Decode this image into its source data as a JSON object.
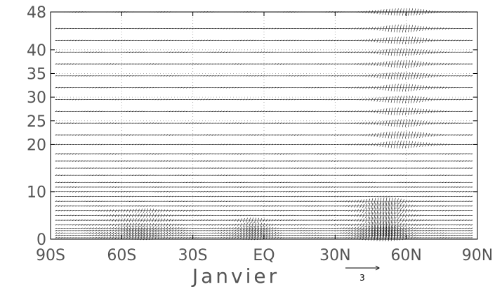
{
  "chart_data": {
    "type": "vector",
    "xlabel": "Janvier",
    "ylabel": "",
    "xlim": [
      -90,
      90
    ],
    "ylim": [
      0,
      48
    ],
    "x_ticks": [
      {
        "value": -90,
        "label": "90S"
      },
      {
        "value": -60,
        "label": "60S"
      },
      {
        "value": -30,
        "label": "30S"
      },
      {
        "value": 0,
        "label": "EQ"
      },
      {
        "value": 30,
        "label": "30N"
      },
      {
        "value": 60,
        "label": "60N"
      },
      {
        "value": 90,
        "label": "90N"
      }
    ],
    "y_ticks": [
      {
        "value": 0,
        "label": "0"
      },
      {
        "value": 10,
        "label": "10"
      },
      {
        "value": 20,
        "label": "20"
      },
      {
        "value": 25,
        "label": "25"
      },
      {
        "value": 30,
        "label": "30"
      },
      {
        "value": 35,
        "label": "35"
      },
      {
        "value": 40,
        "label": "40"
      },
      {
        "value": 48,
        "label": "48"
      }
    ],
    "grid": true,
    "reference_vector": {
      "magnitude": 3,
      "label": "3"
    },
    "levels": [
      0.3,
      0.8,
      1.3,
      1.8,
      2.3,
      3,
      4,
      5,
      6,
      7,
      8,
      9,
      10,
      11,
      12,
      13.5,
      15,
      16.5,
      18,
      20,
      22,
      24.5,
      27,
      29.5,
      32,
      34.5,
      37,
      39.5,
      42,
      44.5,
      48
    ],
    "amplitude_features": [
      {
        "center": 50,
        "width": 10,
        "alt_range": [
          0,
          8
        ],
        "strength": 1.0
      },
      {
        "center": -52,
        "width": 14,
        "alt_range": [
          0,
          6
        ],
        "strength": 0.5
      },
      {
        "center": 58,
        "width": 12,
        "alt_range": [
          20,
          48
        ],
        "strength": 1.0
      },
      {
        "center": -5,
        "width": 8,
        "alt_range": [
          0,
          4
        ],
        "strength": 0.6
      }
    ]
  }
}
